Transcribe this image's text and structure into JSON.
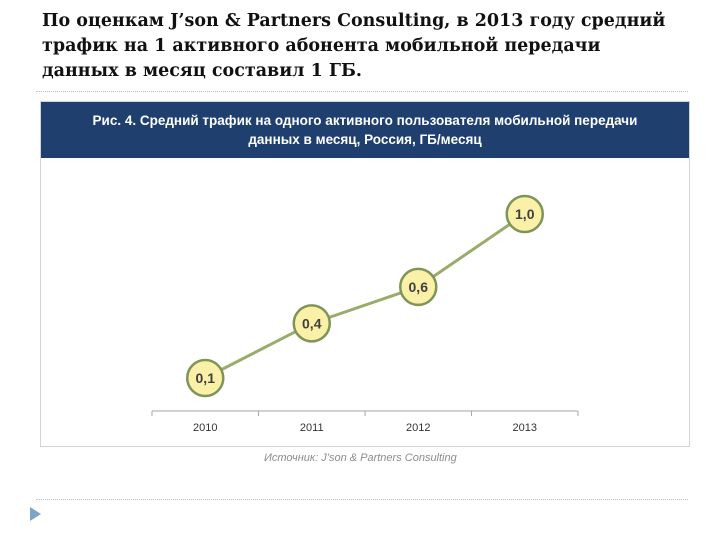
{
  "heading": "По оценкам J’son & Partners Consulting, в 2013 году средний трафик на 1 активного абонента мобильной передачи данных в месяц составил 1 ГБ.",
  "figure": {
    "title_lines": [
      "Рис. 4. Средний трафик на одного активного пользователя мобильной передачи",
      "данных в месяц, Россия, ГБ/месяц"
    ],
    "source": "Источник: J’son & Partners Consulting"
  },
  "colors": {
    "header_bg": "#1f3f6f",
    "line": "#9aab6a",
    "marker_fill": "#fbf0a8",
    "marker_stroke": "#7f9457",
    "axis": "#a6a6a6"
  },
  "icons": {
    "slide_bullet": "triangle-arrow-icon"
  },
  "chart_data": {
    "type": "line",
    "categories": [
      "2010",
      "2011",
      "2012",
      "2013"
    ],
    "series": [
      {
        "values": [
          0.1,
          0.4,
          0.6,
          1.0
        ]
      }
    ],
    "data_labels": [
      "0,1",
      "0,4",
      "0,6",
      "1,0"
    ],
    "title": "Рис. 4. Средний трафик на одного активного пользователя мобильной передачи данных в месяц, Россия, ГБ/месяц",
    "xlabel": "",
    "ylabel": "",
    "ylim": [
      0,
      1.0
    ],
    "grid": false,
    "legend": "none"
  }
}
